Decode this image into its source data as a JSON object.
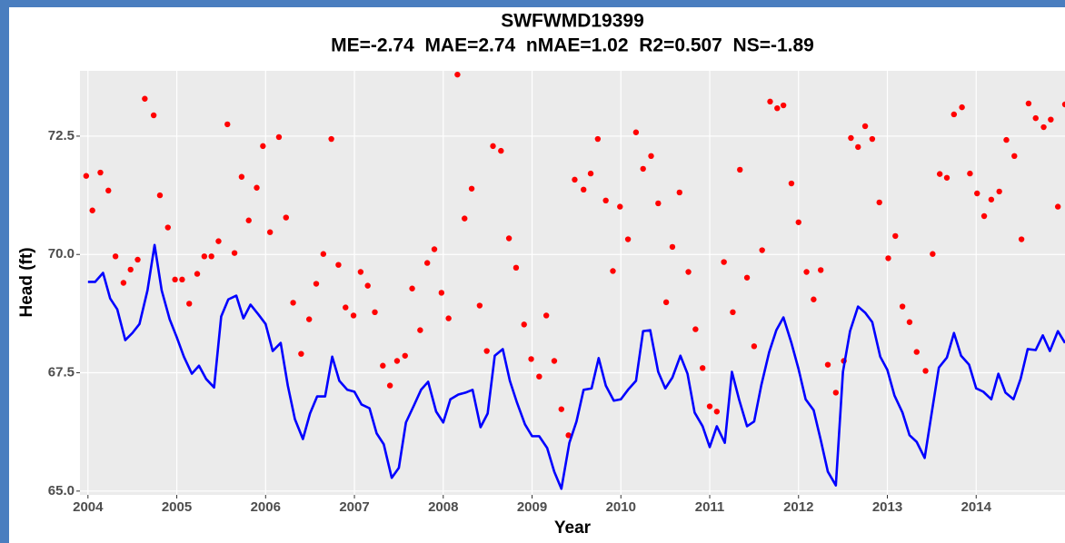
{
  "chart_data": {
    "type": "combo",
    "title": "SWFWMD19399",
    "subtitle": "ME=-2.74  MAE=2.74  nMAE=1.02  R2=0.507  NS=-1.89",
    "x_label": "Year",
    "y_label": "Head (ft)",
    "xlim": [
      2003.91,
      2015.0
    ],
    "ylim": [
      64.92,
      73.88
    ],
    "xticks": [
      2004,
      2005,
      2006,
      2007,
      2008,
      2009,
      2010,
      2011,
      2012,
      2013,
      2014
    ],
    "yticks": [
      {
        "value": 65,
        "label": "65.0"
      },
      67.5,
      {
        "value": 70,
        "label": "70.0"
      },
      72.5
    ],
    "grid": true,
    "series": [
      {
        "type": "scatter",
        "color": "#ff0000",
        "x": [
          2003.98,
          2004.05,
          2004.14,
          2004.23,
          2004.31,
          2004.4,
          2004.48,
          2004.56,
          2004.64,
          2004.74,
          2004.81,
          2004.9,
          2004.98,
          2005.06,
          2005.14,
          2005.23,
          2005.31,
          2005.39,
          2005.47,
          2005.57,
          2005.65,
          2005.73,
          2005.81,
          2005.9,
          2005.97,
          2006.05,
          2006.15,
          2006.23,
          2006.31,
          2006.4,
          2006.49,
          2006.57,
          2006.65,
          2006.74,
          2006.82,
          2006.9,
          2006.99,
          2007.07,
          2007.15,
          2007.23,
          2007.32,
          2007.4,
          2007.48,
          2007.57,
          2007.65,
          2007.74,
          2007.82,
          2007.9,
          2007.98,
          2008.06,
          2008.16,
          2008.24,
          2008.32,
          2008.41,
          2008.49,
          2008.56,
          2008.65,
          2008.74,
          2008.82,
          2008.91,
          2008.99,
          2009.08,
          2009.16,
          2009.25,
          2009.33,
          2009.41,
          2009.48,
          2009.58,
          2009.66,
          2009.74,
          2009.83,
          2009.91,
          2009.99,
          2010.08,
          2010.17,
          2010.25,
          2010.34,
          2010.42,
          2010.51,
          2010.58,
          2010.66,
          2010.76,
          2010.84,
          2010.92,
          2011.0,
          2011.08,
          2011.16,
          2011.26,
          2011.34,
          2011.42,
          2011.5,
          2011.59,
          2011.68,
          2011.76,
          2011.83,
          2011.92,
          2012.0,
          2012.09,
          2012.17,
          2012.25,
          2012.33,
          2012.42,
          2012.51,
          2012.59,
          2012.67,
          2012.75,
          2012.83,
          2012.91,
          2013.01,
          2013.09,
          2013.17,
          2013.25,
          2013.33,
          2013.43,
          2013.51,
          2013.59,
          2013.67,
          2013.75,
          2013.84,
          2013.93,
          2014.01,
          2014.09,
          2014.17,
          2014.26,
          2014.34,
          2014.43,
          2014.51,
          2014.59,
          2014.67,
          2014.76,
          2014.84,
          2014.92,
          2015.0
        ],
        "values": [
          71.66,
          70.93,
          71.73,
          71.35,
          69.96,
          69.4,
          69.68,
          69.89,
          73.29,
          72.94,
          71.25,
          70.57,
          69.47,
          69.47,
          68.96,
          69.59,
          69.96,
          69.96,
          70.28,
          72.75,
          70.03,
          71.64,
          70.72,
          71.41,
          72.29,
          70.47,
          72.48,
          70.78,
          68.98,
          67.9,
          68.63,
          69.38,
          70.01,
          72.44,
          69.78,
          68.88,
          68.71,
          69.63,
          69.34,
          68.78,
          67.65,
          67.23,
          67.75,
          67.86,
          69.28,
          68.4,
          69.82,
          70.11,
          69.19,
          68.65,
          73.8,
          70.76,
          71.39,
          68.92,
          67.96,
          72.29,
          72.19,
          70.34,
          69.72,
          68.52,
          67.79,
          67.42,
          68.71,
          67.75,
          66.73,
          66.18,
          71.58,
          71.37,
          71.71,
          72.44,
          71.14,
          69.65,
          71.01,
          70.32,
          72.58,
          71.81,
          72.08,
          71.08,
          68.99,
          70.16,
          71.31,
          69.63,
          68.42,
          67.6,
          66.79,
          66.68,
          69.84,
          68.78,
          71.79,
          69.51,
          68.06,
          70.09,
          73.23,
          73.09,
          73.15,
          71.5,
          70.68,
          69.63,
          69.05,
          69.67,
          67.67,
          67.08,
          67.75,
          72.46,
          72.27,
          72.71,
          72.44,
          71.1,
          69.92,
          70.39,
          68.9,
          68.57,
          67.94,
          67.54,
          70.01,
          71.7,
          71.62,
          72.96,
          73.11,
          71.71,
          71.29,
          70.81,
          71.16,
          71.33,
          72.42,
          72.08,
          70.32,
          73.19,
          72.88,
          72.69,
          72.85,
          71.01,
          73.17
        ]
      },
      {
        "type": "line",
        "color": "#0000ff",
        "x": [
          2004.0,
          2004.08,
          2004.17,
          2004.25,
          2004.33,
          2004.42,
          2004.5,
          2004.58,
          2004.67,
          2004.75,
          2004.83,
          2004.92,
          2005.0,
          2005.08,
          2005.17,
          2005.25,
          2005.33,
          2005.42,
          2005.5,
          2005.58,
          2005.67,
          2005.75,
          2005.83,
          2005.92,
          2006.0,
          2006.08,
          2006.17,
          2006.25,
          2006.33,
          2006.42,
          2006.5,
          2006.58,
          2006.67,
          2006.75,
          2006.83,
          2006.92,
          2007.0,
          2007.08,
          2007.17,
          2007.25,
          2007.33,
          2007.42,
          2007.5,
          2007.58,
          2007.67,
          2007.75,
          2007.83,
          2007.92,
          2008.0,
          2008.08,
          2008.17,
          2008.25,
          2008.33,
          2008.42,
          2008.5,
          2008.58,
          2008.67,
          2008.75,
          2008.83,
          2008.92,
          2009.0,
          2009.08,
          2009.17,
          2009.25,
          2009.33,
          2009.42,
          2009.5,
          2009.58,
          2009.67,
          2009.75,
          2009.83,
          2009.92,
          2010.0,
          2010.08,
          2010.17,
          2010.25,
          2010.33,
          2010.42,
          2010.5,
          2010.58,
          2010.67,
          2010.75,
          2010.83,
          2010.92,
          2011.0,
          2011.08,
          2011.17,
          2011.25,
          2011.33,
          2011.42,
          2011.5,
          2011.58,
          2011.67,
          2011.75,
          2011.83,
          2011.92,
          2012.0,
          2012.08,
          2012.17,
          2012.25,
          2012.33,
          2012.42,
          2012.5,
          2012.58,
          2012.67,
          2012.75,
          2012.83,
          2012.92,
          2013.0,
          2013.08,
          2013.17,
          2013.25,
          2013.33,
          2013.42,
          2013.5,
          2013.58,
          2013.67,
          2013.75,
          2013.83,
          2013.92,
          2014.0,
          2014.08,
          2014.17,
          2014.25,
          2014.33,
          2014.42,
          2014.5,
          2014.58,
          2014.67,
          2014.75,
          2014.83,
          2014.92,
          2015.0
        ],
        "values": [
          69.42,
          69.42,
          69.61,
          69.07,
          68.84,
          68.19,
          68.34,
          68.53,
          69.24,
          70.2,
          69.24,
          68.63,
          68.25,
          67.84,
          67.48,
          67.65,
          67.37,
          67.19,
          68.69,
          69.05,
          69.13,
          68.65,
          68.94,
          68.73,
          68.53,
          67.96,
          68.13,
          67.23,
          66.52,
          66.1,
          66.64,
          67.0,
          67.0,
          67.84,
          67.33,
          67.14,
          67.1,
          66.83,
          66.75,
          66.22,
          65.99,
          65.28,
          65.49,
          66.45,
          66.81,
          67.14,
          67.31,
          66.68,
          66.45,
          66.94,
          67.04,
          67.08,
          67.14,
          66.35,
          66.64,
          67.86,
          68.0,
          67.33,
          66.87,
          66.41,
          66.16,
          66.16,
          65.91,
          65.41,
          65.05,
          66.02,
          66.47,
          67.14,
          67.17,
          67.81,
          67.23,
          66.91,
          66.94,
          67.14,
          67.33,
          68.38,
          68.4,
          67.52,
          67.17,
          67.4,
          67.86,
          67.48,
          66.66,
          66.37,
          65.93,
          66.37,
          66.02,
          67.52,
          66.94,
          66.37,
          66.47,
          67.23,
          67.94,
          68.4,
          68.67,
          68.13,
          67.58,
          66.94,
          66.71,
          66.08,
          65.41,
          65.12,
          67.52,
          68.38,
          68.9,
          68.77,
          68.57,
          67.84,
          67.56,
          67.02,
          66.66,
          66.18,
          66.04,
          65.7,
          66.66,
          67.61,
          67.82,
          68.34,
          67.86,
          67.67,
          67.17,
          67.1,
          66.94,
          67.48,
          67.08,
          66.94,
          67.37,
          68.0,
          67.98,
          68.29,
          67.96,
          68.38,
          68.13
        ]
      }
    ]
  }
}
